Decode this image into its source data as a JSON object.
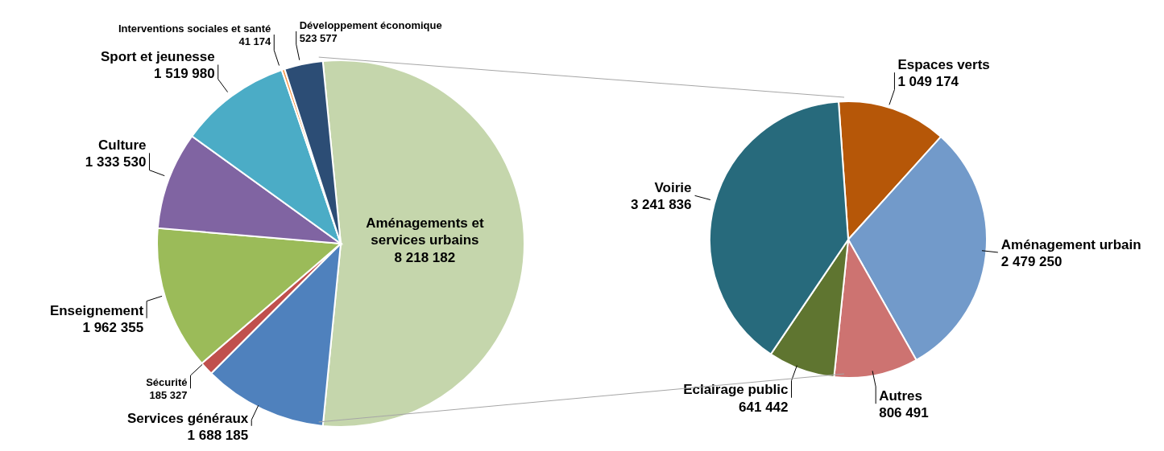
{
  "chart_data": [
    {
      "type": "pie",
      "categories": [
        "Aménagements et services urbains",
        "Services généraux",
        "Sécurité",
        "Enseignement",
        "Culture",
        "Sport et jeunesse",
        "Interventions sociales et santé",
        "Développement économique"
      ],
      "values": [
        8218182,
        1688185,
        185327,
        1962355,
        1333530,
        1519980,
        41174,
        523577
      ],
      "value_labels": [
        "8 218 182",
        "1 688 185",
        "185 327",
        "1 962 355",
        "1 333 530",
        "1 519 980",
        "41 174",
        "523 577"
      ],
      "colors": [
        "#c5d6ac",
        "#4f81bd",
        "#c0504d",
        "#9bbb59",
        "#8064a2",
        "#4bacc6",
        "#f79646",
        "#2c4d75"
      ]
    },
    {
      "type": "pie",
      "categories": [
        "Espaces verts",
        "Aménagement urbain",
        "Autres",
        "Eclairage public",
        "Voirie"
      ],
      "values": [
        1049174,
        2479250,
        806491,
        641442,
        3241836
      ],
      "value_labels": [
        "1 049 174",
        "2 479 250",
        "806 491",
        "641 442",
        "3 241 836"
      ],
      "colors": [
        "#b65708",
        "#729aca",
        "#cd7371",
        "#5f7530",
        "#276a7c"
      ]
    }
  ]
}
